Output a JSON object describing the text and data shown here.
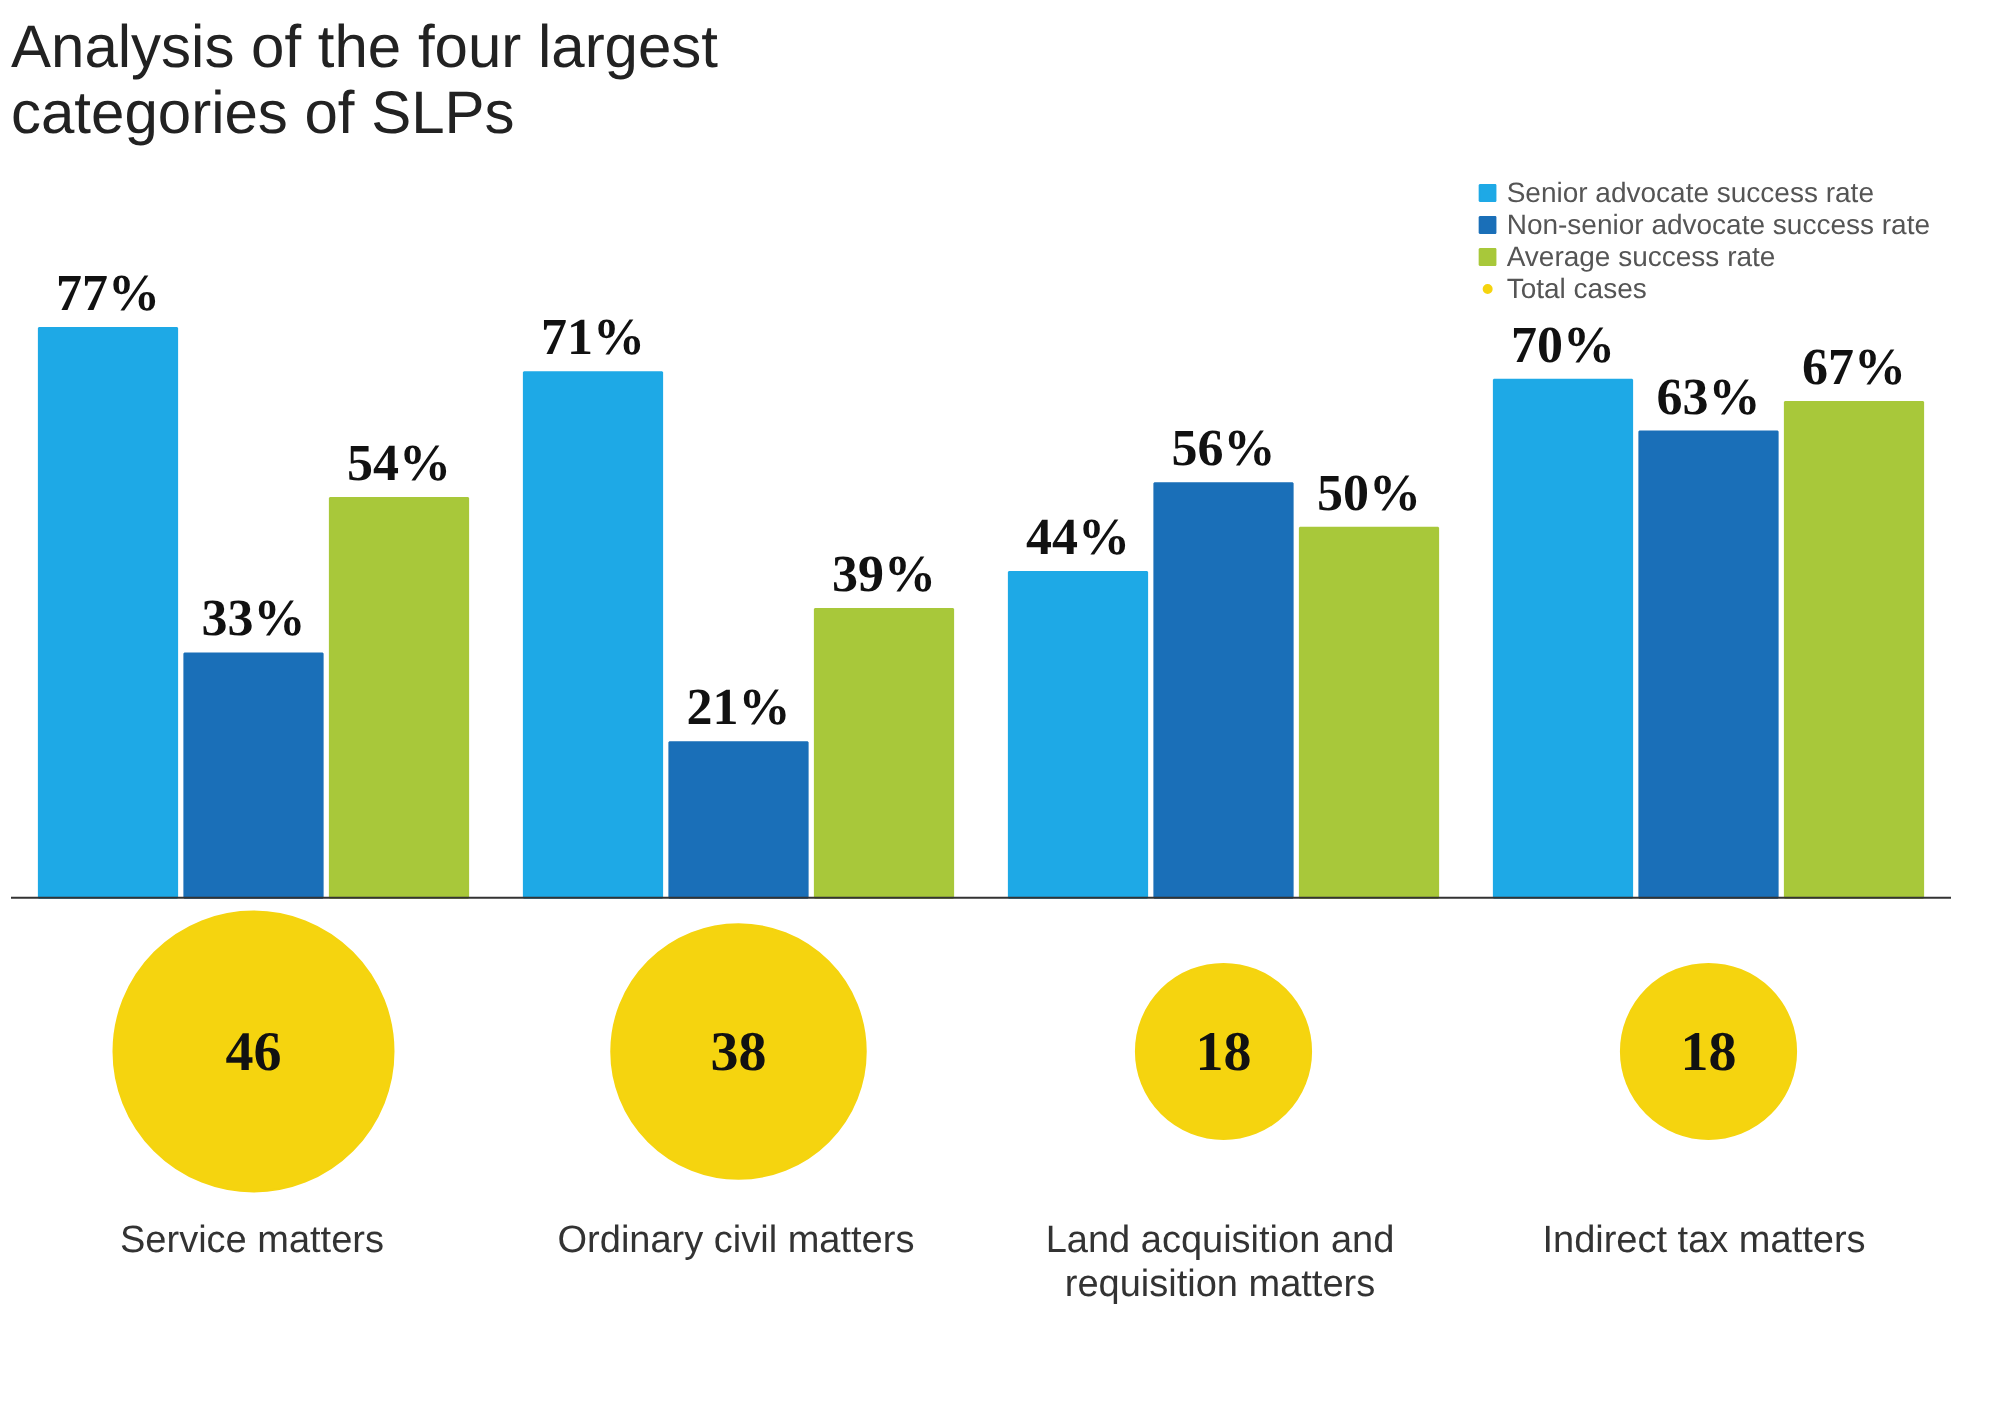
{
  "chart_data": [
    {
      "type": "bar",
      "title": "Analysis of the four largest categories of SLPs",
      "categories": [
        "Service matters",
        "Ordinary civil matters",
        "Land acquisition and requisition matters",
        "Indirect tax matters"
      ],
      "grid": false,
      "legend": "top right",
      "series": [
        {
          "name": "Senior advocate success rate",
          "color": "#1ea9e6",
          "values": [
            77,
            71,
            44,
            70
          ],
          "value_labels": [
            "77%",
            "71%",
            "44%",
            "70%"
          ]
        },
        {
          "name": "Non-senior advocate success rate",
          "color": "#1a6fb8",
          "values": [
            33,
            21,
            56,
            63
          ],
          "value_labels": [
            "33%",
            "21%",
            "56%",
            "63%"
          ]
        },
        {
          "name": "Average success rate",
          "color": "#a8c83a",
          "values": [
            54,
            39,
            50,
            67
          ],
          "value_labels": [
            "54%",
            "39%",
            "50%",
            "67%"
          ]
        }
      ]
    },
    {
      "type": "other",
      "data_labels": true,
      "legend": "top right",
      "series": [
        {
          "name": "Total cases",
          "color": "#f5d40f",
          "values": [
            46,
            38,
            18,
            18
          ]
        }
      ]
    }
  ]
}
